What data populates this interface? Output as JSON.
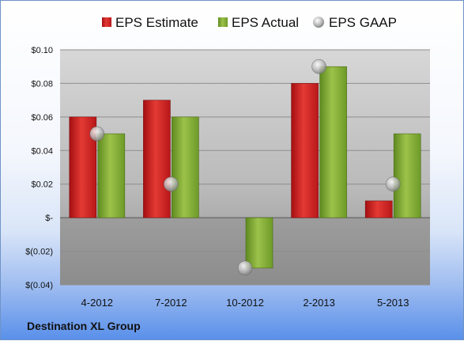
{
  "chart_data": {
    "type": "bar",
    "categories": [
      "4-2012",
      "7-2012",
      "10-2012",
      "2-2013",
      "5-2013"
    ],
    "series": [
      {
        "name": "EPS Estimate",
        "kind": "bar",
        "color": "#d62828",
        "values": [
          0.06,
          0.07,
          null,
          0.08,
          0.01
        ]
      },
      {
        "name": "EPS Actual",
        "kind": "bar",
        "color": "#8fb53b",
        "values": [
          0.05,
          0.06,
          -0.03,
          0.09,
          0.05
        ]
      },
      {
        "name": "EPS GAAP",
        "kind": "marker",
        "color": "#b8b8b8",
        "values": [
          0.05,
          0.02,
          -0.03,
          0.09,
          0.02
        ]
      }
    ],
    "ylim": [
      -0.04,
      0.1
    ],
    "yticks": [
      {
        "value": 0.1,
        "label": "$0.10"
      },
      {
        "value": 0.08,
        "label": "$0.08"
      },
      {
        "value": 0.06,
        "label": "$0.06"
      },
      {
        "value": 0.04,
        "label": "$0.04"
      },
      {
        "value": 0.02,
        "label": "$0.02"
      },
      {
        "value": 0.0,
        "label": "$-"
      },
      {
        "value": -0.02,
        "label": "$(0.02)"
      },
      {
        "value": -0.04,
        "label": "$(0.04)"
      }
    ],
    "legend_position": "top",
    "grid": true,
    "footer": "Destination XL Group"
  }
}
